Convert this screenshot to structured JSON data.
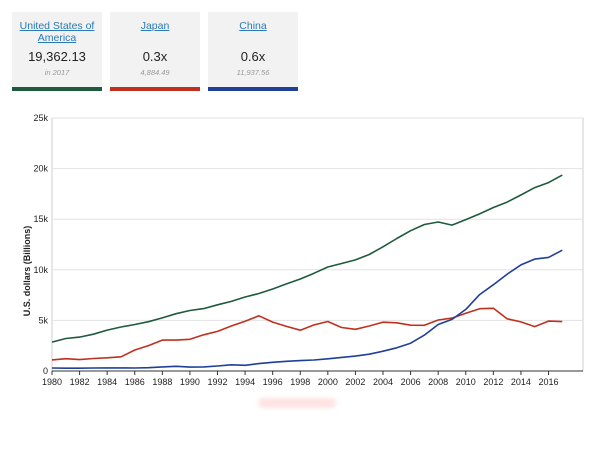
{
  "cards": [
    {
      "name": "United States of America",
      "value": "19,362.13",
      "sub": "in 2017",
      "color": "#1e5a3e"
    },
    {
      "name": "Japan",
      "value": "0.3x",
      "sub": "4,884.49",
      "color": "#c0301f"
    },
    {
      "name": "China",
      "value": "0.6x",
      "sub": "11,937.56",
      "color": "#1f3f99"
    }
  ],
  "chart_data": {
    "type": "line",
    "ylabel": "U.S. dollars (Billions)",
    "ylim": [
      0,
      25000
    ],
    "yticks": [
      0,
      5000,
      10000,
      15000,
      20000,
      25000
    ],
    "ytick_labels": [
      "0",
      "5k",
      "10k",
      "15k",
      "20k",
      "25k"
    ],
    "xticks": [
      1980,
      1982,
      1984,
      1986,
      1988,
      1990,
      1992,
      1994,
      1996,
      1998,
      2000,
      2002,
      2004,
      2006,
      2008,
      2010,
      2012,
      2014,
      2016
    ],
    "x": [
      1980,
      1981,
      1982,
      1983,
      1984,
      1985,
      1986,
      1987,
      1988,
      1989,
      1990,
      1991,
      1992,
      1993,
      1994,
      1995,
      1996,
      1997,
      1998,
      1999,
      2000,
      2001,
      2002,
      2003,
      2004,
      2005,
      2006,
      2007,
      2008,
      2009,
      2010,
      2011,
      2012,
      2013,
      2014,
      2015,
      2016,
      2017
    ],
    "grid": true,
    "series": [
      {
        "color": "#1e5a3e",
        "values": [
          2860,
          3210,
          3350,
          3640,
          4040,
          4350,
          4590,
          4870,
          5250,
          5660,
          5980,
          6170,
          6540,
          6880,
          7310,
          7660,
          8100,
          8610,
          9090,
          9660,
          10280,
          10620,
          10980,
          11510,
          12270,
          13090,
          13860,
          14480,
          14720,
          14420,
          14960,
          15520,
          16160,
          16690,
          17390,
          18120,
          18620,
          19360
        ]
      },
      {
        "color": "#c0301f",
        "values": [
          1100,
          1220,
          1130,
          1240,
          1300,
          1400,
          2080,
          2510,
          3050,
          3050,
          3130,
          3580,
          3910,
          4450,
          4910,
          5450,
          4830,
          4410,
          4030,
          4560,
          4890,
          4300,
          4120,
          4450,
          4820,
          4760,
          4530,
          4520,
          5040,
          5230,
          5700,
          6160,
          6200,
          5160,
          4850,
          4390,
          4930,
          4880
        ]
      },
      {
        "color": "#1f3f99",
        "values": [
          300,
          280,
          280,
          300,
          310,
          310,
          300,
          330,
          410,
          460,
          390,
          410,
          490,
          610,
          560,
          730,
          860,
          960,
          1030,
          1090,
          1210,
          1340,
          1470,
          1660,
          1960,
          2290,
          2750,
          3550,
          4590,
          5100,
          6090,
          7550,
          8530,
          9570,
          10480,
          11060,
          11230,
          11940
        ]
      }
    ]
  }
}
